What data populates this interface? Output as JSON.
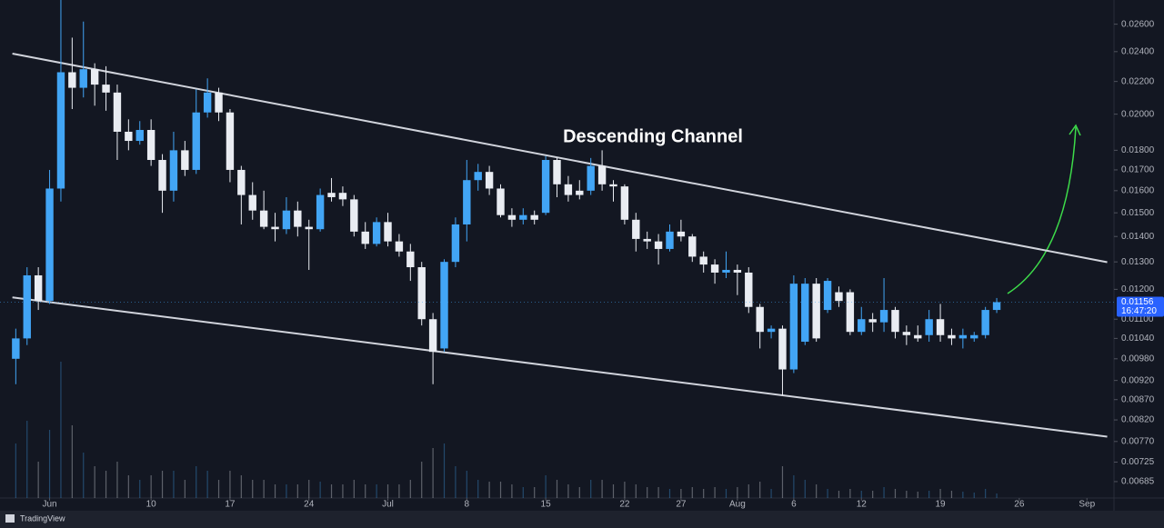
{
  "chart_data": {
    "type": "candlestick",
    "annotation": "Descending Channel",
    "x": [
      -3,
      -2,
      -1,
      0,
      1,
      2,
      3,
      4,
      5,
      6,
      7,
      8,
      9,
      10,
      11,
      12,
      13,
      14,
      15,
      16,
      17,
      18,
      19,
      20,
      21,
      22,
      23,
      24,
      25,
      26,
      27,
      28,
      29,
      30,
      31,
      32,
      33,
      34,
      35,
      36,
      37,
      38,
      39,
      40,
      41,
      42,
      43,
      44,
      45,
      46,
      47,
      48,
      49,
      50,
      51,
      52,
      53,
      54,
      55,
      56,
      57,
      58,
      59,
      60,
      61,
      62,
      63,
      64,
      65,
      66,
      67,
      68,
      69,
      70,
      71,
      72,
      73,
      74,
      75,
      76,
      77,
      78,
      79,
      80,
      81,
      82,
      83,
      84
    ],
    "open": [
      0.0098,
      0.0104,
      0.0125,
      0.0116,
      0.0161,
      0.0226,
      0.0216,
      0.0228,
      0.0218,
      0.0213,
      0.019,
      0.0185,
      0.0191,
      0.0175,
      0.016,
      0.018,
      0.017,
      0.0201,
      0.0213,
      0.0201,
      0.017,
      0.0158,
      0.0151,
      0.0144,
      0.0143,
      0.0151,
      0.0144,
      0.0143,
      0.0159,
      0.0159,
      0.0156,
      0.0142,
      0.0137,
      0.0146,
      0.0138,
      0.0134,
      0.0128,
      0.011,
      0.0101,
      0.013,
      0.0145,
      0.0165,
      0.0169,
      0.0161,
      0.0149,
      0.0147,
      0.0149,
      0.015,
      0.0175,
      0.0163,
      0.016,
      0.016,
      0.0172,
      0.0163,
      0.0162,
      0.0147,
      0.0139,
      0.0138,
      0.0135,
      0.0142,
      0.014,
      0.0132,
      0.0129,
      0.0126,
      0.0127,
      0.0126,
      0.0114,
      0.0106,
      0.0107,
      0.0095,
      0.0103,
      0.0122,
      0.0113,
      0.0119,
      0.0119,
      0.0106,
      0.011,
      0.0109,
      0.0113,
      0.0106,
      0.0105,
      0.0105,
      0.011,
      0.0105,
      0.0104,
      0.0104,
      0.0105,
      0.0113
    ],
    "high": [
      0.0107,
      0.0128,
      0.0128,
      0.017,
      0.0279,
      0.025,
      0.0262,
      0.0232,
      0.023,
      0.0218,
      0.0197,
      0.0196,
      0.0197,
      0.0178,
      0.019,
      0.0185,
      0.0215,
      0.0222,
      0.0216,
      0.0203,
      0.0172,
      0.0164,
      0.016,
      0.015,
      0.0157,
      0.0155,
      0.0147,
      0.0161,
      0.0166,
      0.0162,
      0.0158,
      0.0146,
      0.0148,
      0.015,
      0.0141,
      0.0137,
      0.013,
      0.0112,
      0.0131,
      0.0148,
      0.0175,
      0.0173,
      0.0172,
      0.0163,
      0.0152,
      0.0152,
      0.0151,
      0.0177,
      0.0176,
      0.0167,
      0.0165,
      0.0176,
      0.018,
      0.0165,
      0.0163,
      0.015,
      0.0142,
      0.0141,
      0.0145,
      0.0147,
      0.0141,
      0.0134,
      0.0131,
      0.0134,
      0.0129,
      0.0128,
      0.0115,
      0.0108,
      0.0108,
      0.0125,
      0.0124,
      0.0124,
      0.0124,
      0.0121,
      0.012,
      0.0114,
      0.0112,
      0.0124,
      0.0114,
      0.0108,
      0.0108,
      0.0113,
      0.0115,
      0.0107,
      0.0107,
      0.0106,
      0.0114,
      0.0117
    ],
    "low": [
      0.0091,
      0.0102,
      0.0113,
      0.0115,
      0.0155,
      0.0203,
      0.021,
      0.0205,
      0.0202,
      0.0175,
      0.018,
      0.0183,
      0.0172,
      0.015,
      0.0155,
      0.0167,
      0.0168,
      0.0198,
      0.0196,
      0.0164,
      0.0145,
      0.0147,
      0.0143,
      0.0138,
      0.0141,
      0.014,
      0.0127,
      0.0142,
      0.0155,
      0.0153,
      0.014,
      0.0135,
      0.0136,
      0.0136,
      0.0132,
      0.0123,
      0.0108,
      0.0091,
      0.01,
      0.0128,
      0.0138,
      0.016,
      0.0158,
      0.0148,
      0.0144,
      0.0145,
      0.0145,
      0.0149,
      0.0157,
      0.0155,
      0.0156,
      0.0158,
      0.016,
      0.0155,
      0.0145,
      0.0134,
      0.0135,
      0.0129,
      0.0134,
      0.0138,
      0.013,
      0.0126,
      0.0122,
      0.0124,
      0.0118,
      0.0112,
      0.0101,
      0.0104,
      0.0088,
      0.0094,
      0.0102,
      0.0103,
      0.0112,
      0.0114,
      0.0105,
      0.0105,
      0.0106,
      0.0106,
      0.0104,
      0.0102,
      0.0103,
      0.0103,
      0.0103,
      0.0102,
      0.0101,
      0.0103,
      0.0104,
      0.0112
    ],
    "close": [
      0.0104,
      0.0125,
      0.0116,
      0.0161,
      0.0226,
      0.0216,
      0.0228,
      0.0218,
      0.0213,
      0.019,
      0.0185,
      0.0191,
      0.0175,
      0.016,
      0.018,
      0.017,
      0.0201,
      0.0213,
      0.0201,
      0.017,
      0.0158,
      0.0151,
      0.0144,
      0.0143,
      0.0151,
      0.0144,
      0.0143,
      0.0158,
      0.0157,
      0.0156,
      0.0142,
      0.0137,
      0.0146,
      0.0138,
      0.0134,
      0.0128,
      0.011,
      0.01,
      0.013,
      0.0145,
      0.0165,
      0.0169,
      0.0161,
      0.0149,
      0.0147,
      0.0149,
      0.0147,
      0.0175,
      0.0163,
      0.0158,
      0.0158,
      0.0172,
      0.0163,
      0.0162,
      0.0147,
      0.0139,
      0.0138,
      0.0135,
      0.0142,
      0.014,
      0.0132,
      0.0129,
      0.0126,
      0.0127,
      0.0126,
      0.0114,
      0.0106,
      0.0107,
      0.0095,
      0.0122,
      0.0122,
      0.0104,
      0.0123,
      0.0116,
      0.0106,
      0.011,
      0.0109,
      0.0113,
      0.0106,
      0.0105,
      0.0104,
      0.011,
      0.0105,
      0.0104,
      0.0105,
      0.0105,
      0.0113,
      0.01156
    ],
    "volume": [
      60,
      85,
      40,
      75,
      150,
      80,
      50,
      35,
      30,
      40,
      25,
      20,
      25,
      30,
      30,
      20,
      35,
      30,
      20,
      30,
      25,
      20,
      20,
      15,
      15,
      15,
      20,
      18,
      15,
      15,
      20,
      15,
      15,
      15,
      15,
      20,
      40,
      55,
      60,
      35,
      30,
      20,
      18,
      18,
      15,
      12,
      12,
      25,
      20,
      15,
      12,
      20,
      20,
      15,
      18,
      15,
      12,
      12,
      10,
      10,
      12,
      10,
      12,
      10,
      12,
      15,
      18,
      10,
      35,
      25,
      20,
      15,
      10,
      8,
      10,
      8,
      8,
      12,
      10,
      8,
      7,
      8,
      10,
      8,
      7,
      6,
      10,
      5
    ],
    "up_color": "#42a5f5",
    "down_color": "#e9ecf2",
    "log_scale": true,
    "ylim": [
      0.00653,
      0.0279
    ],
    "yticks": [
      {
        "value": 0.026,
        "label": "0.02600"
      },
      {
        "value": 0.024,
        "label": "0.02400"
      },
      {
        "value": 0.022,
        "label": "0.02200"
      },
      {
        "value": 0.02,
        "label": "0.02000"
      },
      {
        "value": 0.018,
        "label": "0.01800"
      },
      {
        "value": 0.017,
        "label": "0.01700"
      },
      {
        "value": 0.016,
        "label": "0.01600"
      },
      {
        "value": 0.015,
        "label": "0.01500"
      },
      {
        "value": 0.014,
        "label": "0.01400"
      },
      {
        "value": 0.013,
        "label": "0.01300"
      },
      {
        "value": 0.012,
        "label": "0.01200"
      },
      {
        "value": 0.011,
        "label": "0.01100"
      },
      {
        "value": 0.0104,
        "label": "0.01040"
      },
      {
        "value": 0.0098,
        "label": "0.00980"
      },
      {
        "value": 0.0092,
        "label": "0.00920"
      },
      {
        "value": 0.0087,
        "label": "0.00870"
      },
      {
        "value": 0.0082,
        "label": "0.00820"
      },
      {
        "value": 0.0077,
        "label": "0.00770"
      },
      {
        "value": 0.00725,
        "label": "0.00725"
      },
      {
        "value": 0.00685,
        "label": "0.00685"
      }
    ],
    "xlim": [
      -4.4,
      94.4
    ],
    "xticks": [
      {
        "value": 0,
        "label": "Jun"
      },
      {
        "value": 9,
        "label": "10"
      },
      {
        "value": 16,
        "label": "17"
      },
      {
        "value": 23,
        "label": "24"
      },
      {
        "value": 30,
        "label": "Jul"
      },
      {
        "value": 37,
        "label": "8"
      },
      {
        "value": 44,
        "label": "15"
      },
      {
        "value": 51,
        "label": "22"
      },
      {
        "value": 56,
        "label": "27"
      },
      {
        "value": 61,
        "label": "Aug"
      },
      {
        "value": 66,
        "label": "6"
      },
      {
        "value": 72,
        "label": "12"
      },
      {
        "value": 79,
        "label": "19"
      },
      {
        "value": 86,
        "label": "26"
      },
      {
        "value": 92,
        "label": "Sep"
      }
    ],
    "trendlines": [
      {
        "start": [
          -3.3,
          0.02386
        ],
        "end": [
          93.8,
          0.01299
        ]
      },
      {
        "start": [
          -3.3,
          0.01172
        ],
        "end": [
          93.8,
          0.00781
        ]
      }
    ],
    "price_tag": {
      "price": 0.01156,
      "countdown": "16:47:20"
    }
  },
  "footer": {
    "brand": "TradingView"
  }
}
